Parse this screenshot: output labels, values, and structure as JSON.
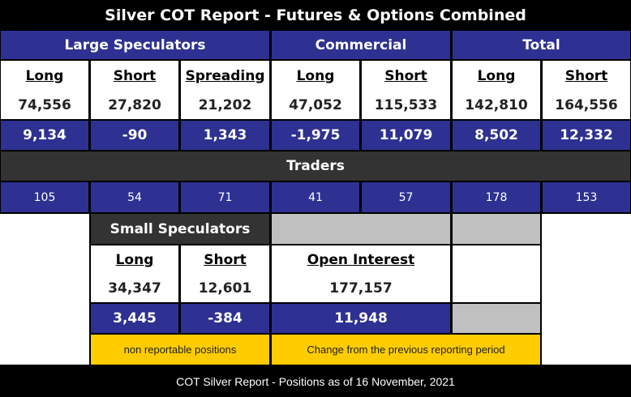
{
  "title": "Silver COT Report - Futures & Options Combined",
  "groups": {
    "large_speculators": "Large Speculators",
    "commercial": "Commercial",
    "total": "Total"
  },
  "columns": [
    "Long",
    "Short",
    "Spreading",
    "Long",
    "Short",
    "Long",
    "Short"
  ],
  "positions": [
    "74,556",
    "27,820",
    "21,202",
    "47,052",
    "115,533",
    "142,810",
    "164,556"
  ],
  "changes": [
    "9,134",
    "-90",
    "1,343",
    "-1,975",
    "11,079",
    "8,502",
    "12,332"
  ],
  "traders_label": "Traders",
  "traders": [
    "105",
    "54",
    "71",
    "41",
    "57",
    "178",
    "153"
  ],
  "small_speculators": {
    "header": "Small Speculators",
    "long_label": "Long",
    "short_label": "Short",
    "long_value": "34,347",
    "short_value": "12,601",
    "long_change": "3,445",
    "short_change": "-384"
  },
  "open_interest": {
    "label": "Open Interest",
    "value": "177,157",
    "change": "11,948"
  },
  "notes": {
    "non_reportable": "non reportable positions",
    "change_note": "Change from the previous reporting period"
  },
  "footer": "COT Silver Report - Positions as of 16 November, 2021",
  "colors": {
    "header_blue": "#2e3192",
    "dark_gray": "#333333",
    "light_gray": "#c0c0c0",
    "yellow": "#ffcc00"
  }
}
